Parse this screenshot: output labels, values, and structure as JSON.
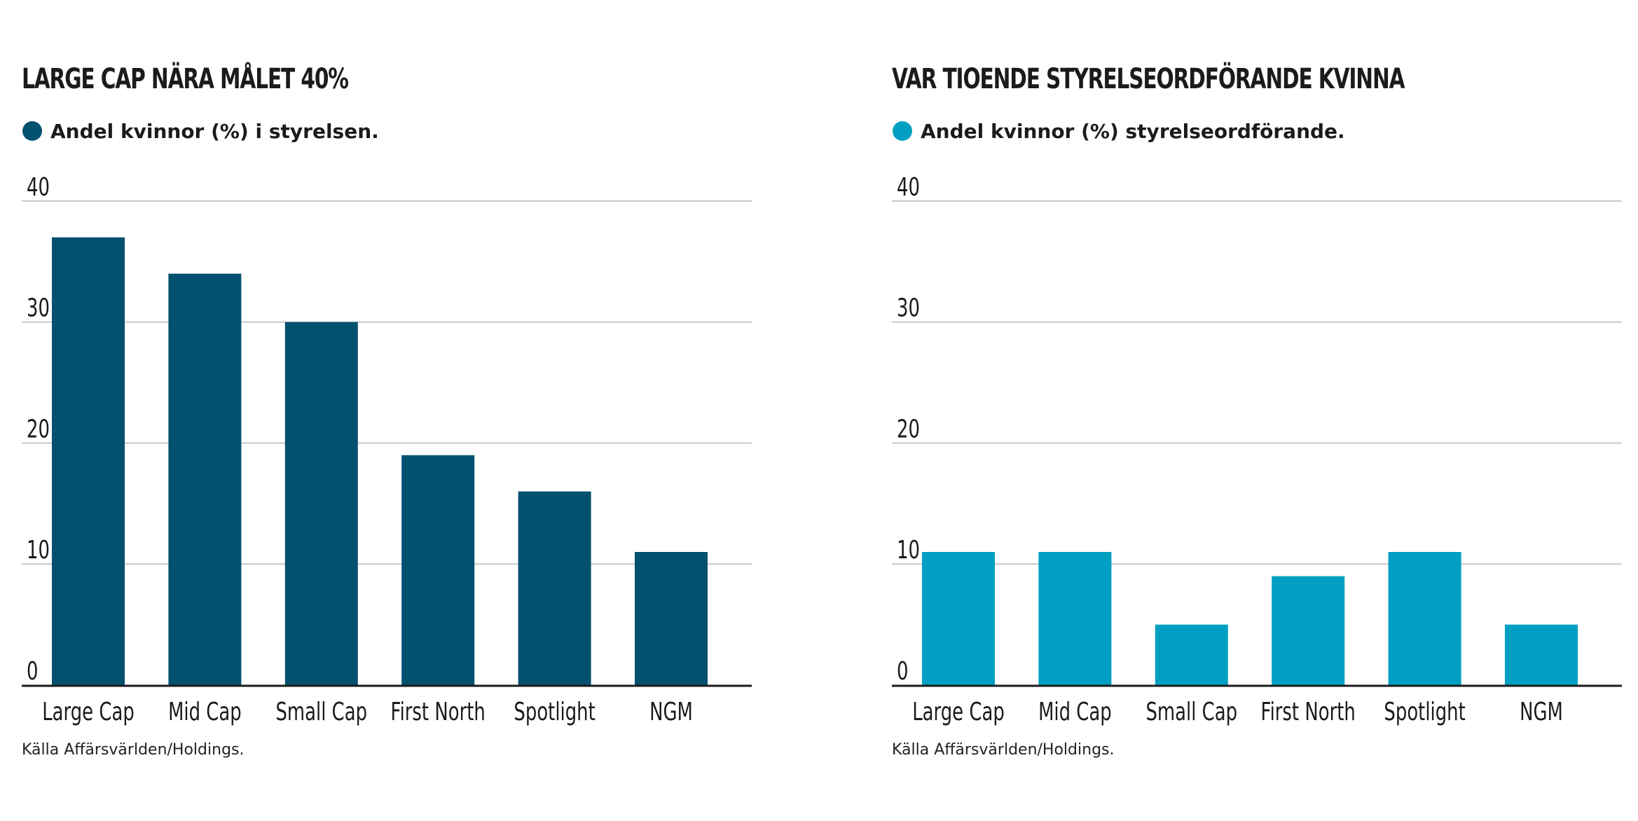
{
  "colors": {
    "left_bars": "#03506f",
    "right_bars": "#01a0c2",
    "gridline": "#c8c8c8",
    "baseline": "#1b1b1b",
    "text": "#1b1b1b"
  },
  "chart_data": [
    {
      "type": "bar",
      "title": "LARGE CAP NÄRA MÅLET 40%",
      "legend": [
        {
          "name": "Andel kvinnor (%) i styrelsen.",
          "color": "#03506f"
        }
      ],
      "categories": [
        "Large Cap",
        "Mid Cap",
        "Small Cap",
        "First North",
        "Spotlight",
        "NGM"
      ],
      "series": [
        {
          "name": "Andel kvinnor (%) i styrelsen.",
          "values": [
            37,
            34,
            30,
            19,
            16,
            11
          ]
        }
      ],
      "yticks": [
        0,
        10,
        20,
        30,
        40
      ],
      "ylim": [
        0,
        40
      ],
      "grid": true,
      "source": "Källa Affärsvärlden/Holdings."
    },
    {
      "type": "bar",
      "title": "VAR TIOENDE STYRELSEORDFÖRANDE KVINNA",
      "legend": [
        {
          "name": "Andel kvinnor (%) styrelseordförande.",
          "color": "#01a0c2"
        }
      ],
      "categories": [
        "Large Cap",
        "Mid Cap",
        "Small Cap",
        "First North",
        "Spotlight",
        "NGM"
      ],
      "series": [
        {
          "name": "Andel kvinnor (%) styrelseordförande.",
          "values": [
            11,
            11,
            5,
            9,
            11,
            5
          ]
        }
      ],
      "yticks": [
        0,
        10,
        20,
        30,
        40
      ],
      "ylim": [
        0,
        40
      ],
      "grid": true,
      "source": "Källa Affärsvärlden/Holdings."
    }
  ]
}
